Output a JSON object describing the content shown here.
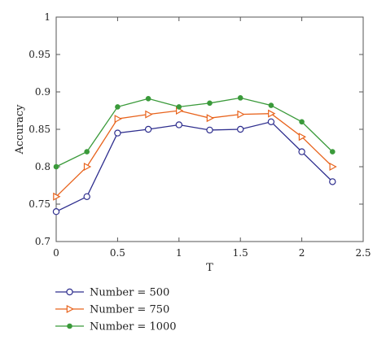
{
  "chart_data": {
    "type": "line",
    "title": "",
    "xlabel": "T",
    "ylabel": "Accuracy",
    "xlim": [
      0,
      2.5
    ],
    "ylim": [
      0.7,
      1
    ],
    "xticks": [
      "0",
      "0.5",
      "1",
      "1.5",
      "2",
      "2.5"
    ],
    "yticks": [
      "0.7",
      "0.75",
      "0.8",
      "0.85",
      "0.9",
      "0.95",
      "1"
    ],
    "x": [
      0,
      0.25,
      0.5,
      0.75,
      1,
      1.25,
      1.5,
      1.75,
      2,
      2.25
    ],
    "grid": false,
    "legend_position": "below-left",
    "series": [
      {
        "name": "Number = 500",
        "color": "#2e2e8e",
        "marker": "circle-open",
        "values": [
          0.74,
          0.76,
          0.845,
          0.85,
          0.856,
          0.849,
          0.85,
          0.86,
          0.82,
          0.78
        ]
      },
      {
        "name": "Number = 750",
        "color": "#e8631c",
        "marker": "triangle-right-open",
        "values": [
          0.76,
          0.8,
          0.864,
          0.87,
          0.875,
          0.865,
          0.87,
          0.871,
          0.84,
          0.8
        ]
      },
      {
        "name": "Number = 1000",
        "color": "#3a9a3a",
        "marker": "dot-filled",
        "values": [
          0.8,
          0.82,
          0.88,
          0.891,
          0.88,
          0.885,
          0.892,
          0.882,
          0.86,
          0.82
        ]
      }
    ]
  }
}
